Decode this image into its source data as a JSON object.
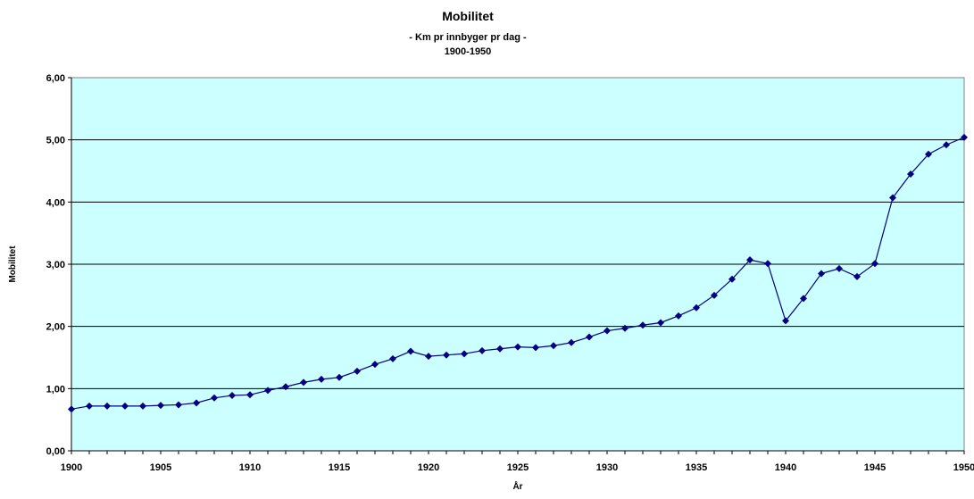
{
  "chart_data": {
    "type": "line",
    "title": "Mobilitet",
    "subtitle": "- Km pr innbyger pr dag -",
    "subtitle2": "1900-1950",
    "xlabel": "År",
    "ylabel": "Mobilitet",
    "xlim": [
      1900,
      1950
    ],
    "ylim": [
      0,
      6
    ],
    "x_ticks": [
      "1900",
      "1905",
      "1910",
      "1915",
      "1920",
      "1925",
      "1930",
      "1935",
      "1940",
      "1945",
      "1950"
    ],
    "y_ticks": [
      "0,00",
      "1,00",
      "2,00",
      "3,00",
      "4,00",
      "5,00",
      "6,00"
    ],
    "grid": true,
    "legend": "none",
    "colors": {
      "plot_background": "#ccffff",
      "series": "#000080"
    },
    "x": [
      1900,
      1901,
      1902,
      1903,
      1904,
      1905,
      1906,
      1907,
      1908,
      1909,
      1910,
      1911,
      1912,
      1913,
      1914,
      1915,
      1916,
      1917,
      1918,
      1919,
      1920,
      1921,
      1922,
      1923,
      1924,
      1925,
      1926,
      1927,
      1928,
      1929,
      1930,
      1931,
      1932,
      1933,
      1934,
      1935,
      1936,
      1937,
      1938,
      1939,
      1940,
      1941,
      1942,
      1943,
      1944,
      1945,
      1946,
      1947,
      1948,
      1949,
      1950
    ],
    "series": [
      {
        "values": [
          0.67,
          0.72,
          0.72,
          0.72,
          0.72,
          0.73,
          0.74,
          0.77,
          0.85,
          0.89,
          0.9,
          0.97,
          1.03,
          1.1,
          1.15,
          1.18,
          1.28,
          1.39,
          1.48,
          1.6,
          1.52,
          1.54,
          1.56,
          1.61,
          1.64,
          1.67,
          1.66,
          1.69,
          1.74,
          1.83,
          1.93,
          1.97,
          2.02,
          2.06,
          2.17,
          2.3,
          2.5,
          2.76,
          3.07,
          3.01,
          2.09,
          2.45,
          2.85,
          2.93,
          2.8,
          3.01,
          4.07,
          4.45,
          4.77,
          4.92,
          5.04
        ]
      }
    ]
  }
}
